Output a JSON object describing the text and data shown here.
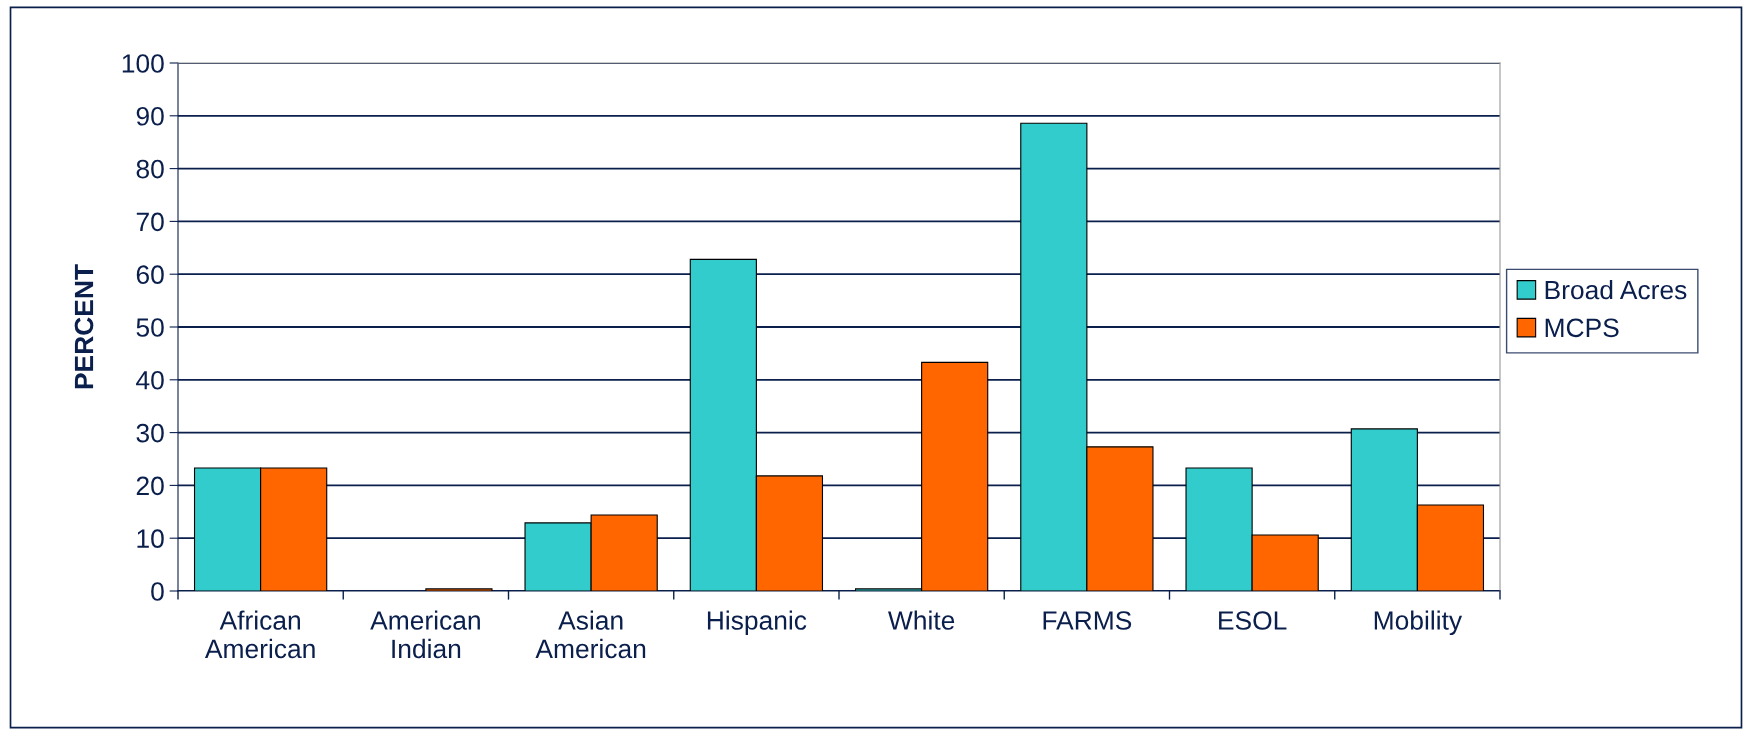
{
  "chart_data": {
    "type": "bar",
    "ylabel": "PERCENT",
    "categories": [
      "African\nAmerican",
      "American\nIndian",
      "Asian\nAmerican",
      "Hispanic",
      "White",
      "FARMS",
      "ESOL",
      "Mobility"
    ],
    "series": [
      {
        "name": "Broad Acres",
        "color": "#33cccc",
        "values": [
          23.3,
          0,
          12.9,
          62.8,
          0.4,
          88.6,
          23.3,
          30.7
        ]
      },
      {
        "name": "MCPS",
        "color": "#ff6600",
        "values": [
          23.3,
          0.4,
          14.4,
          21.8,
          43.3,
          27.3,
          10.6,
          16.3
        ]
      }
    ],
    "ylim": [
      0,
      100
    ],
    "yticks": [
      0,
      10,
      20,
      30,
      40,
      50,
      60,
      70,
      80,
      90,
      100
    ],
    "grid": "y",
    "legend": "right"
  }
}
